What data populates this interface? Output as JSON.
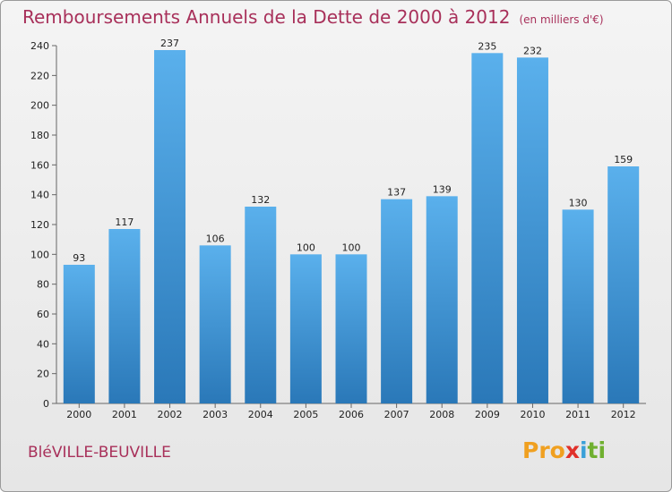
{
  "header": {
    "title": "Remboursements Annuels de la Dette de 2000 à 2012",
    "unit": "(en milliers d'€)"
  },
  "footer": {
    "commune": "BléVILLE-BEUVILLE",
    "logo": [
      "Pro",
      "x",
      "i",
      "ti"
    ]
  },
  "colors": {
    "title": "#a8305a",
    "bar_top": "#5ab0ec",
    "bar_bottom": "#2a78b8"
  },
  "chart_data": {
    "type": "bar",
    "title": "Remboursements Annuels de la Dette de 2000 à 2012",
    "xlabel": "",
    "ylabel": "",
    "categories": [
      "2000",
      "2001",
      "2002",
      "2003",
      "2004",
      "2005",
      "2006",
      "2007",
      "2008",
      "2009",
      "2010",
      "2011",
      "2012"
    ],
    "values": [
      93,
      117,
      237,
      106,
      132,
      100,
      100,
      137,
      139,
      235,
      232,
      130,
      159
    ],
    "ylim": [
      0,
      240
    ],
    "yticks": [
      0,
      20,
      40,
      60,
      80,
      100,
      120,
      140,
      160,
      180,
      200,
      220,
      240
    ],
    "grid": false,
    "legend": "none"
  }
}
